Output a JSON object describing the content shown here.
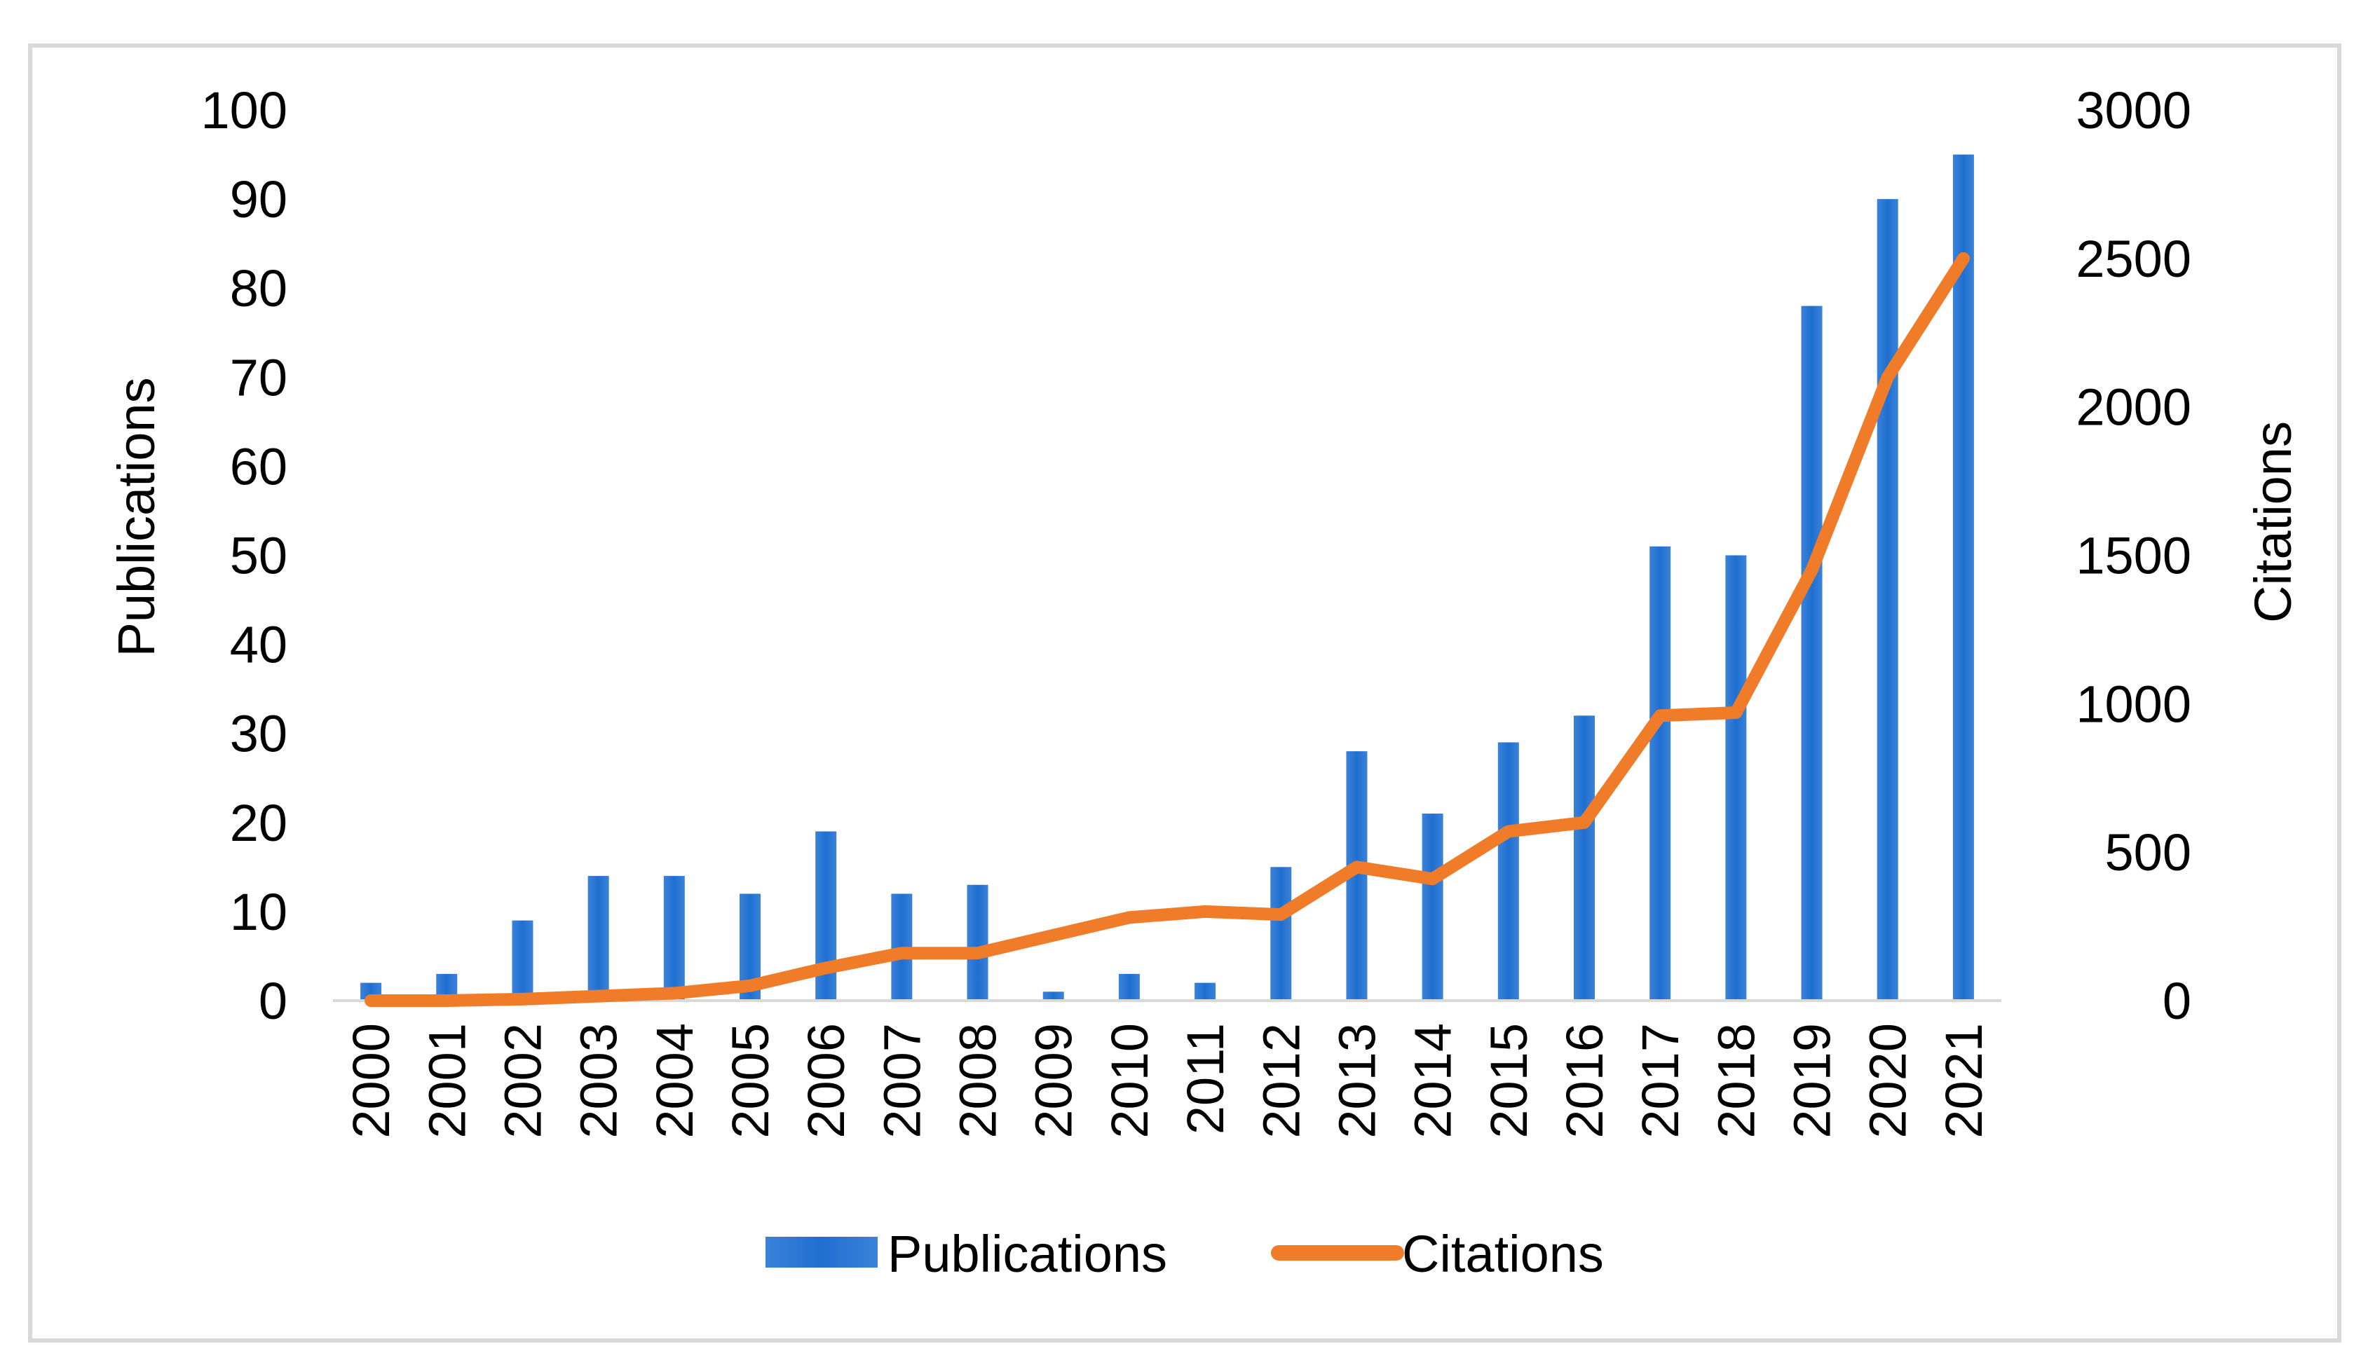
{
  "chart_data": {
    "type": "bar",
    "categories": [
      "2000",
      "2001",
      "2002",
      "2003",
      "2004",
      "2005",
      "2006",
      "2007",
      "2008",
      "2009",
      "2010",
      "2011",
      "2012",
      "2013",
      "2014",
      "2015",
      "2016",
      "2017",
      "2018",
      "2019",
      "2020",
      "2021"
    ],
    "series": [
      {
        "name": "Publications",
        "type": "bar",
        "axis": "left",
        "color": "#2e75d0",
        "values": [
          2,
          3,
          9,
          14,
          14,
          12,
          19,
          12,
          13,
          1,
          3,
          2,
          15,
          28,
          21,
          29,
          32,
          51,
          50,
          78,
          90,
          95
        ]
      },
      {
        "name": "Citations",
        "type": "line",
        "axis": "right",
        "color": "#f07b28",
        "values": [
          0,
          0,
          5,
          15,
          25,
          50,
          110,
          160,
          160,
          220,
          280,
          300,
          290,
          450,
          410,
          570,
          600,
          960,
          970,
          1450,
          2100,
          2500
        ]
      }
    ],
    "ylabel": "Publications",
    "y2label": "Citations",
    "ylim": [
      0,
      100
    ],
    "y2lim": [
      0,
      3000
    ],
    "yticks": [
      "0",
      "10",
      "20",
      "30",
      "40",
      "50",
      "60",
      "70",
      "80",
      "90",
      "100"
    ],
    "y2ticks": [
      "0",
      "500",
      "1000",
      "1500",
      "2000",
      "2500",
      "3000"
    ],
    "legend_position": "bottom-center"
  }
}
